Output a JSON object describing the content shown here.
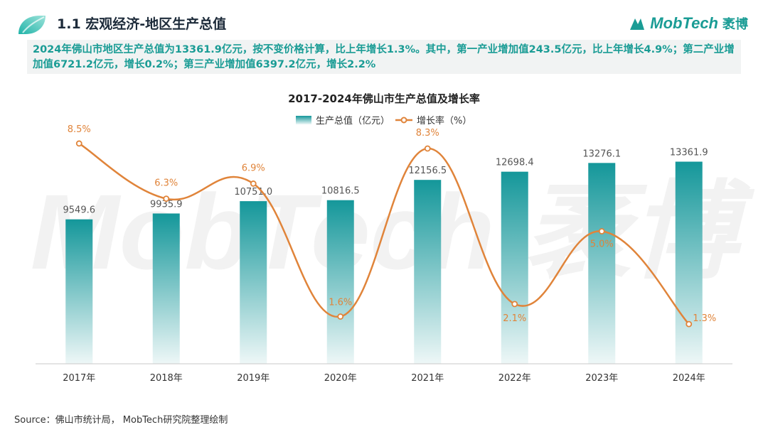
{
  "header": {
    "section_title": "1.1 宏观经济-地区生产总值",
    "brand_name": "MobTech",
    "brand_cn": "袤博"
  },
  "summary": {
    "text": "2024年佛山市地区生产总值为13361.9亿元，按不变价格计算，比上年增长1.3%。其中，第一产业增加值243.5亿元，比上年增长4.9%；第二产业增加值6721.2亿元，增长0.2%；第三产业增加值6397.2亿元，增长2.2%"
  },
  "colors": {
    "bar_top": "#14979a",
    "bar_bottom": "#eef7f7",
    "line": "#e0843a",
    "label_bar": "#555555",
    "label_line": "#e0843a"
  },
  "chart_data": {
    "type": "bar",
    "title": "2017-2024年佛山市生产总值及增长率",
    "categories": [
      "2017年",
      "2018年",
      "2019年",
      "2020年",
      "2021年",
      "2022年",
      "2023年",
      "2024年"
    ],
    "series": [
      {
        "name": "生产总值（亿元）",
        "type": "bar",
        "values": [
          9549.6,
          9935.9,
          10751.0,
          10816.5,
          12156.5,
          12698.4,
          13276.1,
          13361.9
        ],
        "labels": [
          "9549.6",
          "9935.9",
          "10751.0",
          "10816.5",
          "12156.5",
          "12698.4",
          "13276.1",
          "13361.9"
        ]
      },
      {
        "name": "增长率（%）",
        "type": "line",
        "values": [
          8.5,
          6.3,
          6.9,
          1.6,
          8.3,
          2.1,
          5.0,
          1.3
        ],
        "labels": [
          "8.5%",
          "6.3%",
          "6.9%",
          "1.6%",
          "8.3%",
          "2.1%",
          "5.0%",
          "1.3%"
        ]
      }
    ],
    "legend_position": "top-center",
    "watermark": "MobTech 袤博"
  },
  "footer": {
    "source": "Source：佛山市统计局， MobTech研究院整理绘制"
  }
}
